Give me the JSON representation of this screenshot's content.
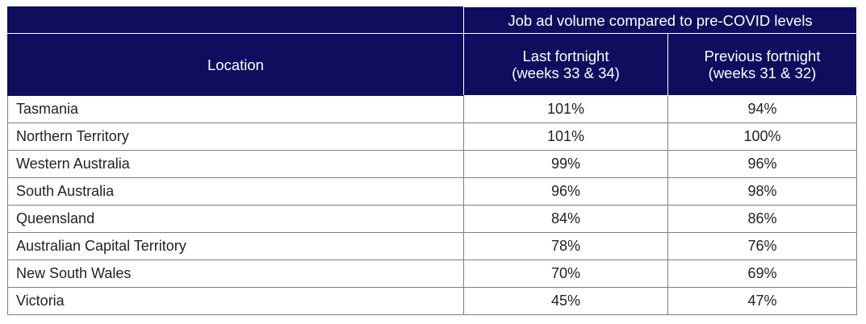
{
  "table": {
    "group_header": "Job ad volume compared to pre-COVID levels",
    "columns": {
      "location": "Location",
      "last_fortnight": {
        "line1": "Last fortnight",
        "line2": "(weeks 33 & 34)"
      },
      "previous_fortnight": {
        "line1": "Previous fortnight",
        "line2": "(weeks 31 & 32)"
      }
    },
    "rows": [
      {
        "location": "Tasmania",
        "last": "101%",
        "previous": "94%"
      },
      {
        "location": "Northern Territory",
        "last": "101%",
        "previous": "100%"
      },
      {
        "location": "Western Australia",
        "last": "99%",
        "previous": "96%"
      },
      {
        "location": "South Australia",
        "last": "96%",
        "previous": "98%"
      },
      {
        "location": "Queensland",
        "last": "84%",
        "previous": "86%"
      },
      {
        "location": "Australian Capital Territory",
        "last": "78%",
        "previous": "76%"
      },
      {
        "location": "New South Wales",
        "last": "70%",
        "previous": "69%"
      },
      {
        "location": "Victoria",
        "last": "45%",
        "previous": "47%"
      }
    ]
  },
  "colors": {
    "header_background": "#0f0d5e",
    "header_text": "#ffffff",
    "cell_border": "#7f7f7f"
  }
}
